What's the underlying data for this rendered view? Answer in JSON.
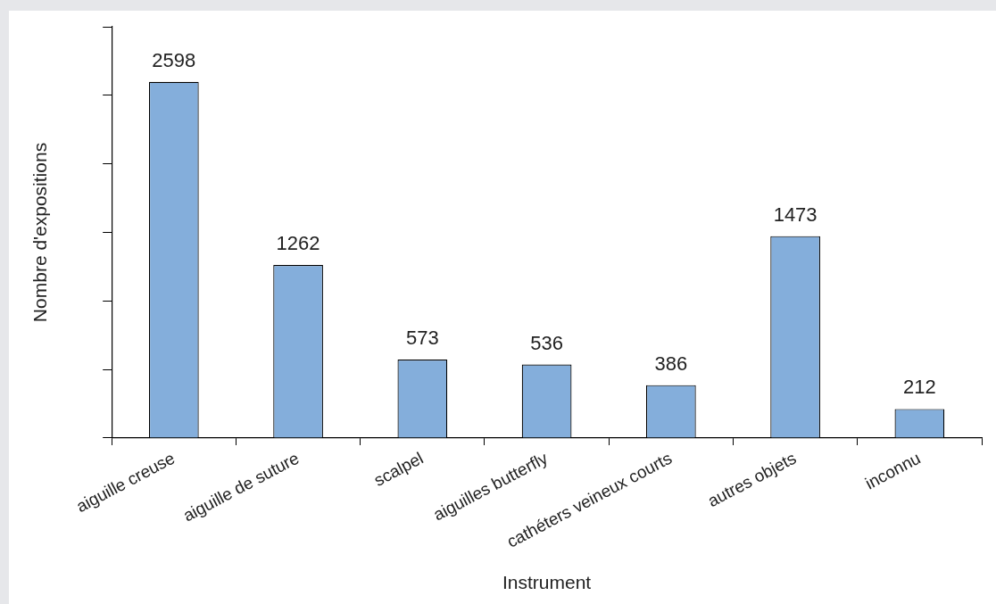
{
  "chart_data": {
    "type": "bar",
    "xlabel": "Instrument",
    "ylabel": "Nombre d'expositions",
    "categories": [
      "aiguille creuse",
      "aiguille de suture",
      "scalpel",
      "aiguilles butterfly",
      "cathéters veineux courts",
      "autres objets",
      "inconnu"
    ],
    "values": [
      2598,
      1262,
      573,
      536,
      386,
      1473,
      212
    ],
    "color": "#84aedb",
    "ylim": [
      0,
      3000
    ],
    "tick_labels": "x",
    "data_labels": true,
    "grid": false,
    "legend": false
  }
}
